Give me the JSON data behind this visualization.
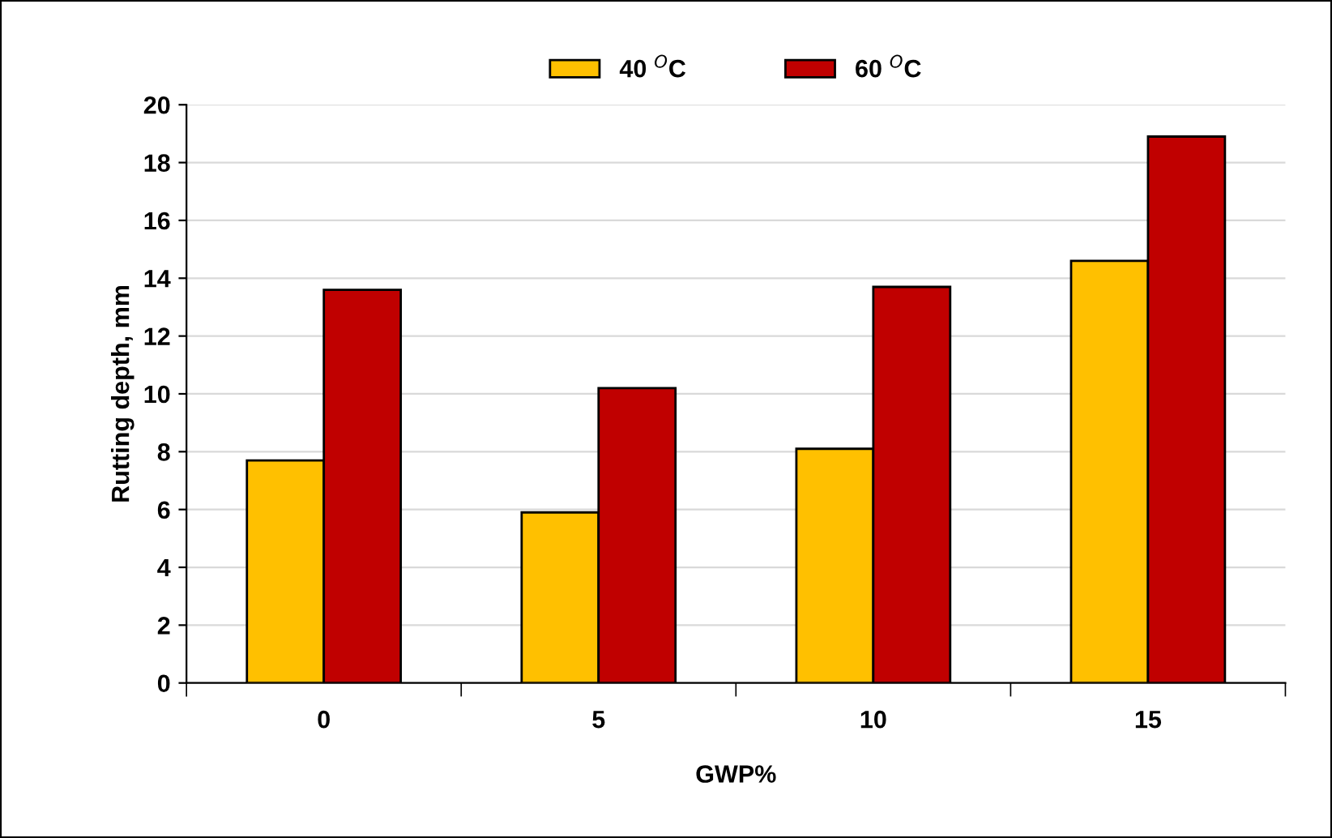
{
  "chart_data": {
    "type": "bar",
    "xlabel": "GWP%",
    "ylabel": "Rutting depth, mm",
    "categories": [
      "0",
      "5",
      "10",
      "15"
    ],
    "series": [
      {
        "name": "40 $^{O}$C",
        "color": "#ffc000",
        "values": [
          7.7,
          5.9,
          8.1,
          14.6
        ]
      },
      {
        "name": "60 $^{O}$C",
        "color": "#c00000",
        "values": [
          13.6,
          10.2,
          13.7,
          18.9
        ]
      }
    ],
    "ylim": [
      0,
      20
    ],
    "yticks": [
      0,
      2,
      4,
      6,
      8,
      10,
      12,
      14,
      16,
      18,
      20
    ],
    "grid": "y",
    "legend": "top"
  }
}
